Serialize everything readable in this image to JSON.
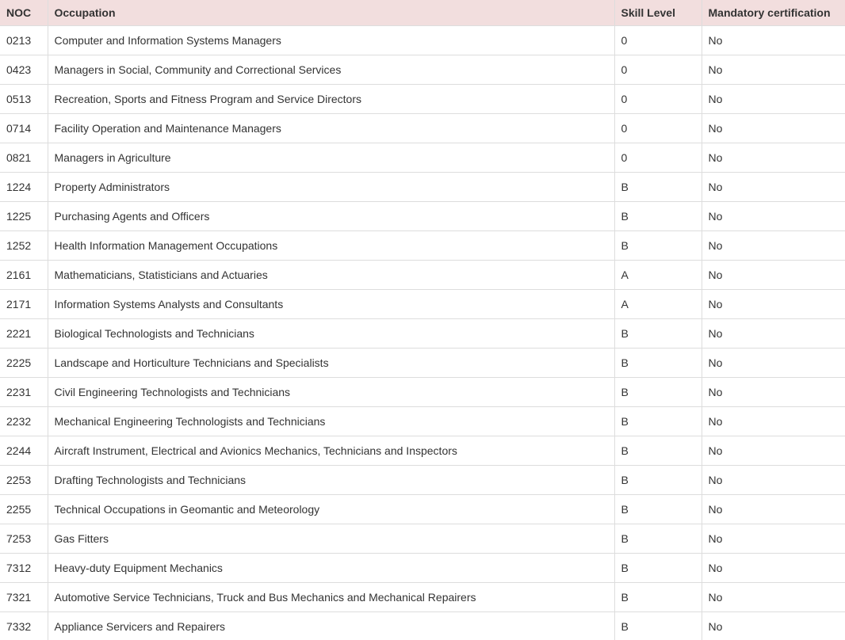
{
  "colors": {
    "header_bg": "#f2dede",
    "header_text": "#333333",
    "border": "#dddddd",
    "row_text": "#333333",
    "row_bg": "#ffffff"
  },
  "table": {
    "columns": [
      {
        "key": "noc",
        "label": "NOC"
      },
      {
        "key": "occupation",
        "label": "Occupation"
      },
      {
        "key": "skill",
        "label": "Skill Level"
      },
      {
        "key": "cert",
        "label": "Mandatory certification"
      }
    ],
    "rows": [
      {
        "noc": "0213",
        "occupation": "Computer and Information Systems Managers",
        "skill": "0",
        "cert": "No"
      },
      {
        "noc": "0423",
        "occupation": "Managers in Social, Community and Correctional Services",
        "skill": "0",
        "cert": "No"
      },
      {
        "noc": "0513",
        "occupation": "Recreation, Sports and Fitness Program and Service Directors",
        "skill": "0",
        "cert": "No"
      },
      {
        "noc": "0714",
        "occupation": "Facility Operation and Maintenance Managers",
        "skill": "0",
        "cert": "No"
      },
      {
        "noc": "0821",
        "occupation": "Managers in Agriculture",
        "skill": "0",
        "cert": "No"
      },
      {
        "noc": "1224",
        "occupation": "Property Administrators",
        "skill": "B",
        "cert": "No"
      },
      {
        "noc": "1225",
        "occupation": "Purchasing Agents and Officers",
        "skill": "B",
        "cert": "No"
      },
      {
        "noc": "1252",
        "occupation": "Health Information Management Occupations",
        "skill": "B",
        "cert": "No"
      },
      {
        "noc": "2161",
        "occupation": "Mathematicians, Statisticians and Actuaries",
        "skill": "A",
        "cert": "No"
      },
      {
        "noc": "2171",
        "occupation": "Information Systems Analysts and Consultants",
        "skill": "A",
        "cert": "No"
      },
      {
        "noc": "2221",
        "occupation": "Biological Technologists and Technicians",
        "skill": "B",
        "cert": "No"
      },
      {
        "noc": "2225",
        "occupation": "Landscape and Horticulture Technicians and Specialists",
        "skill": "B",
        "cert": "No"
      },
      {
        "noc": "2231",
        "occupation": "Civil Engineering Technologists and Technicians",
        "skill": "B",
        "cert": "No"
      },
      {
        "noc": "2232",
        "occupation": "Mechanical Engineering Technologists and Technicians",
        "skill": "B",
        "cert": "No"
      },
      {
        "noc": "2244",
        "occupation": "Aircraft Instrument, Electrical and Avionics Mechanics, Technicians and Inspectors",
        "skill": "B",
        "cert": "No"
      },
      {
        "noc": "2253",
        "occupation": "Drafting Technologists and Technicians",
        "skill": "B",
        "cert": "No"
      },
      {
        "noc": "2255",
        "occupation": "Technical Occupations in Geomantic and Meteorology",
        "skill": "B",
        "cert": "No"
      },
      {
        "noc": "7253",
        "occupation": "Gas Fitters",
        "skill": "B",
        "cert": "No"
      },
      {
        "noc": "7312",
        "occupation": "Heavy-duty Equipment Mechanics",
        "skill": "B",
        "cert": "No"
      },
      {
        "noc": "7321",
        "occupation": "Automotive Service Technicians, Truck and Bus Mechanics and Mechanical Repairers",
        "skill": "B",
        "cert": "No"
      },
      {
        "noc": "7332",
        "occupation": "Appliance Servicers and Repairers",
        "skill": "B",
        "cert": "No"
      }
    ]
  }
}
